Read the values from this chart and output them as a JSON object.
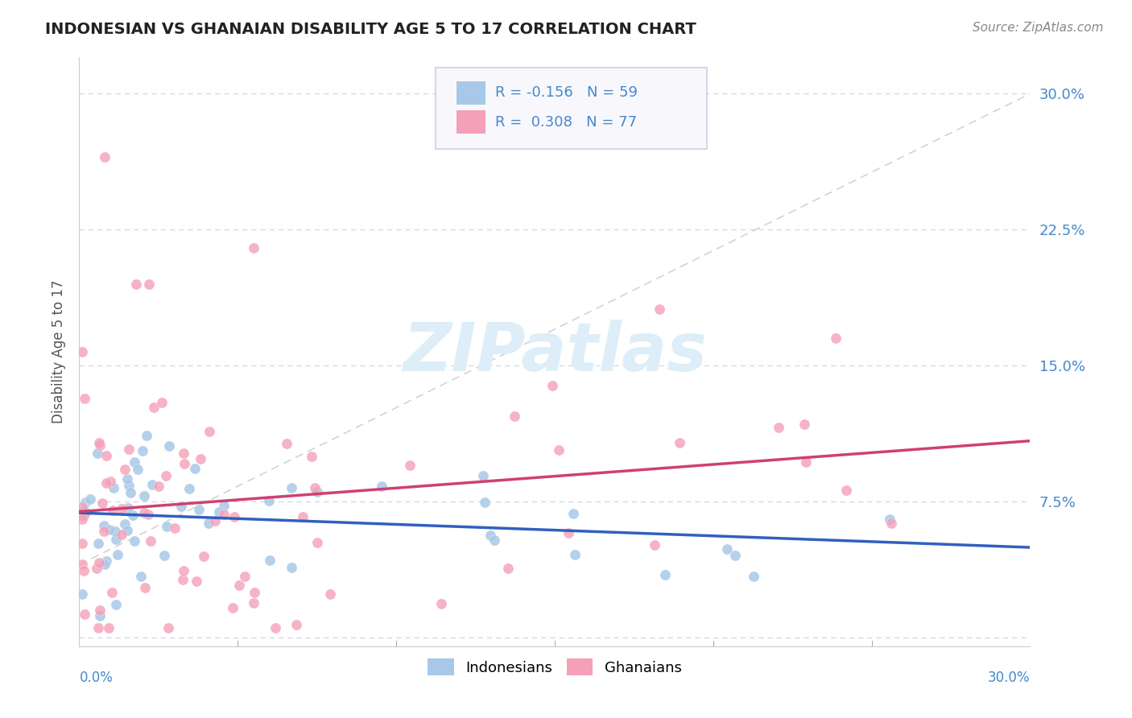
{
  "title": "INDONESIAN VS GHANAIAN DISABILITY AGE 5 TO 17 CORRELATION CHART",
  "source": "Source: ZipAtlas.com",
  "ylabel": "Disability Age 5 to 17",
  "xlim": [
    0.0,
    0.3
  ],
  "ylim": [
    -0.005,
    0.32
  ],
  "yticks": [
    0.0,
    0.075,
    0.15,
    0.225,
    0.3
  ],
  "ytick_labels": [
    "",
    "7.5%",
    "15.0%",
    "22.5%",
    "30.0%"
  ],
  "indonesian_R": -0.156,
  "ghanaian_R": 0.308,
  "scatter_color_indonesian": "#a8c8e8",
  "scatter_color_ghanaian": "#f4a0b8",
  "line_color_indonesian": "#3060c0",
  "line_color_ghanaian": "#d04070",
  "background_color": "#ffffff",
  "grid_color": "#c8d8e8",
  "watermark_color": "#ddeef8",
  "legend_box_color": "#f8f8fc",
  "legend_border_color": "#d0d0e0"
}
